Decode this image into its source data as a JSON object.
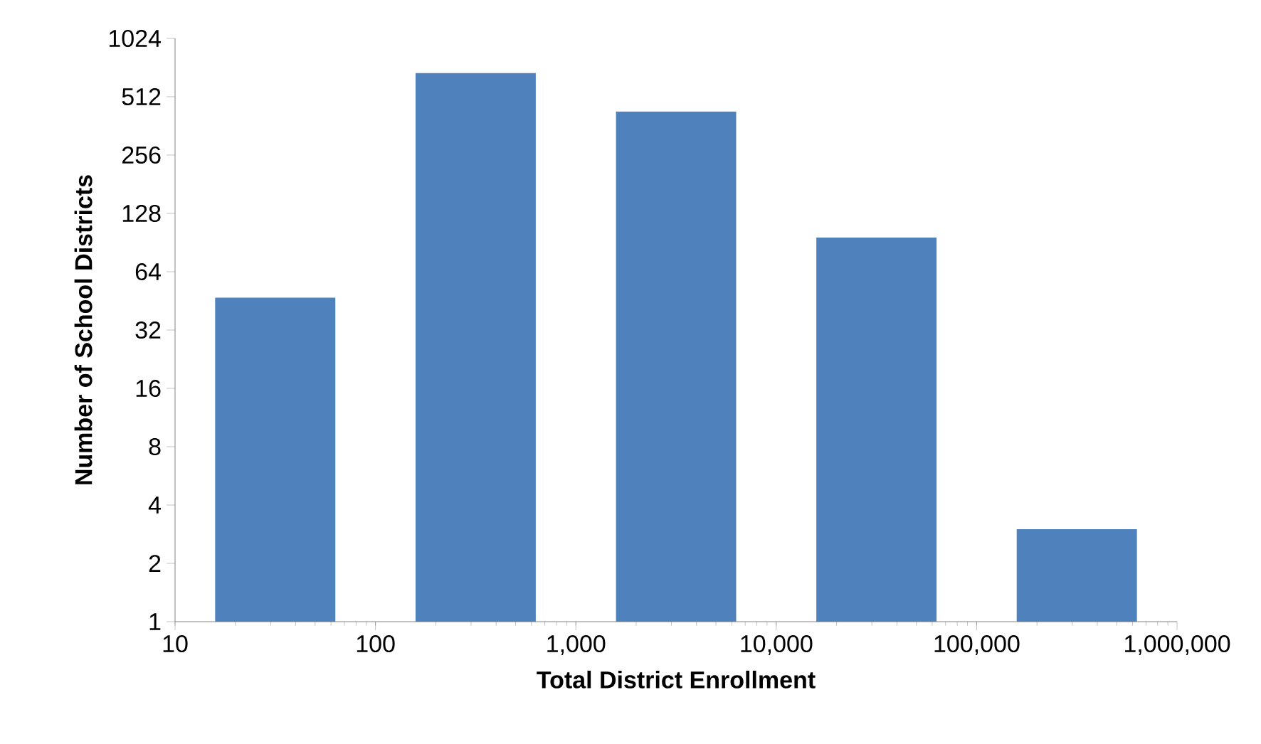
{
  "chart_data": {
    "type": "histogram",
    "xlabel": "Total District Enrollment",
    "ylabel": "Number of School Districts",
    "bins": [
      10,
      100,
      1000,
      10000,
      100000,
      1000000
    ],
    "values": [
      47,
      680,
      430,
      96,
      3
    ],
    "color": "#4f81bd",
    "log": "xy",
    "xlim": [
      10,
      1000000
    ],
    "ylim": [
      1,
      1024
    ],
    "xticks": [
      10,
      100,
      {
        "value": 1000,
        "label": "1,000"
      },
      {
        "value": 10000,
        "label": "10,000"
      },
      {
        "value": 100000,
        "label": "100,000"
      },
      {
        "value": 1000000,
        "label": "1,000,000"
      }
    ],
    "yticks": [
      1,
      2,
      4,
      8,
      16,
      32,
      64,
      128,
      256,
      512,
      1024
    ],
    "grid": false
  }
}
